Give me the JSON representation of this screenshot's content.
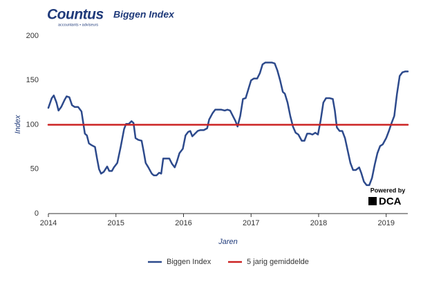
{
  "logo": {
    "name": "Countus",
    "tagline": "accountants • adviseurs"
  },
  "badge": {
    "caption": "Powered by",
    "name": "DCA"
  },
  "chart_data": {
    "type": "line",
    "title": "Biggen Index",
    "y_label": "Index",
    "x_label": "Jaren",
    "xlim": [
      2014,
      2019.32
    ],
    "xticks": [
      2014,
      2015,
      2016,
      2017,
      2018,
      2019
    ],
    "ylim": [
      0,
      200
    ],
    "yticks": [
      0,
      50,
      100,
      150,
      200
    ],
    "grid": false,
    "legend": "bottom",
    "x": [
      2014.0,
      2014.05,
      2014.08,
      2014.12,
      2014.15,
      2014.19,
      2014.24,
      2014.27,
      2014.31,
      2014.35,
      2014.39,
      2014.44,
      2014.49,
      2014.52,
      2014.54,
      2014.57,
      2014.6,
      2014.64,
      2014.69,
      2014.72,
      2014.75,
      2014.78,
      2014.82,
      2014.87,
      2014.9,
      2014.94,
      2014.97,
      2015.02,
      2015.07,
      2015.12,
      2015.15,
      2015.19,
      2015.23,
      2015.26,
      2015.29,
      2015.33,
      2015.38,
      2015.41,
      2015.44,
      2015.48,
      2015.53,
      2015.56,
      2015.6,
      2015.64,
      2015.67,
      2015.7,
      2015.74,
      2015.79,
      2015.83,
      2015.87,
      2015.9,
      2015.94,
      2015.99,
      2016.03,
      2016.07,
      2016.1,
      2016.13,
      2016.17,
      2016.21,
      2016.25,
      2016.3,
      2016.35,
      2016.38,
      2016.43,
      2016.47,
      2016.52,
      2016.56,
      2016.61,
      2016.65,
      2016.69,
      2016.73,
      2016.77,
      2016.8,
      2016.84,
      2016.88,
      2016.92,
      2016.96,
      2017.0,
      2017.04,
      2017.09,
      2017.13,
      2017.17,
      2017.21,
      2017.25,
      2017.31,
      2017.35,
      2017.39,
      2017.43,
      2017.47,
      2017.5,
      2017.54,
      2017.58,
      2017.62,
      2017.66,
      2017.7,
      2017.75,
      2017.79,
      2017.83,
      2017.87,
      2017.91,
      2017.95,
      2017.99,
      2018.03,
      2018.07,
      2018.11,
      2018.16,
      2018.21,
      2018.24,
      2018.27,
      2018.31,
      2018.35,
      2018.39,
      2018.43,
      2018.47,
      2018.51,
      2018.55,
      2018.6,
      2018.63,
      2018.67,
      2018.71,
      2018.75,
      2018.79,
      2018.83,
      2018.87,
      2018.91,
      2018.95,
      2019.0,
      2019.04,
      2019.08,
      2019.12,
      2019.16,
      2019.2,
      2019.24,
      2019.28,
      2019.32
    ],
    "series": [
      {
        "name": "Biggen Index",
        "color": "#2d4a8c",
        "values": [
          119,
          130,
          133,
          125,
          116,
          120,
          128,
          132,
          131,
          122,
          120,
          120,
          115,
          100,
          90,
          88,
          79,
          77,
          75,
          62,
          50,
          45,
          47,
          53,
          48,
          48,
          52,
          57,
          75,
          95,
          101,
          101,
          104,
          102,
          85,
          83,
          82,
          70,
          57,
          52,
          45,
          43,
          43,
          46,
          45,
          62,
          62,
          62,
          56,
          52,
          58,
          68,
          73,
          88,
          92,
          93,
          87,
          90,
          93,
          94,
          94,
          96,
          106,
          113,
          117,
          117,
          117,
          116,
          117,
          116,
          110,
          104,
          98,
          110,
          129,
          130,
          140,
          150,
          152,
          152,
          158,
          168,
          170,
          170,
          170,
          169,
          161,
          150,
          137,
          135,
          125,
          110,
          98,
          91,
          89,
          82,
          82,
          90,
          90,
          89,
          91,
          89,
          105,
          125,
          130,
          130,
          129,
          116,
          97,
          93,
          93,
          85,
          71,
          57,
          49,
          49,
          52,
          46,
          36,
          32,
          32,
          40,
          55,
          68,
          76,
          78,
          85,
          93,
          102,
          110,
          135,
          155,
          159,
          160,
          160
        ]
      },
      {
        "name": "5 jarig gemiddelde",
        "color": "#cc2222",
        "x": [
          2014,
          2019.32
        ],
        "values": [
          100,
          100
        ]
      }
    ]
  }
}
